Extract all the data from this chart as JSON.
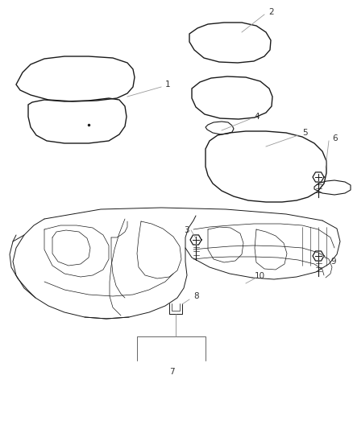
{
  "bg_color": "#ffffff",
  "line_color": "#1a1a1a",
  "label_color": "#333333",
  "figsize": [
    4.38,
    5.33
  ],
  "dpi": 100,
  "mat_lw": 1.0,
  "floor_lw": 0.7,
  "detail_lw": 0.5
}
